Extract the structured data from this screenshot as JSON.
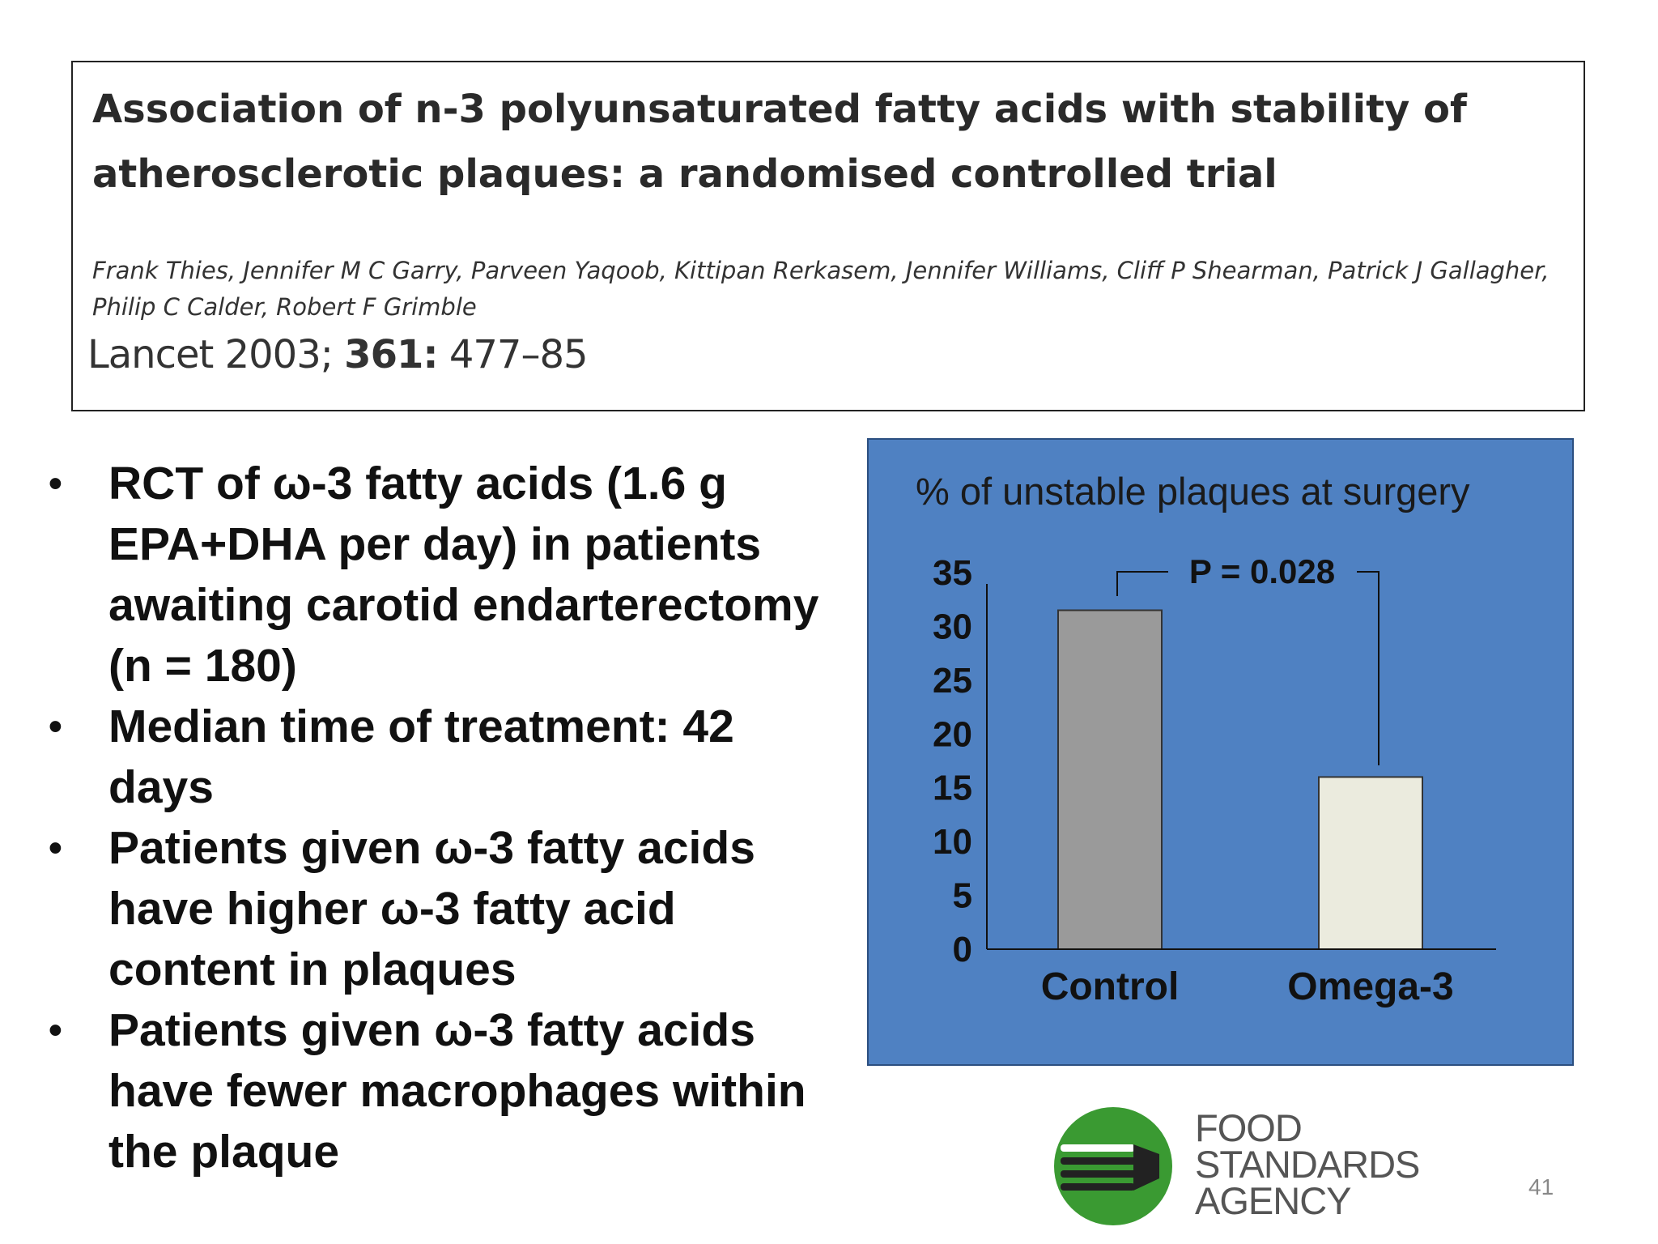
{
  "citation": {
    "title": "Association of n-3 polyunsaturated fatty acids with stability of atherosclerotic plaques: a randomised controlled trial",
    "authors": "Frank Thies, Jennifer M C Garry, Parveen Yaqoob, Kittipan Rerkasem, Jennifer Williams, Cliff P Shearman, Patrick J Gallagher, Philip C Calder, Robert F Grimble",
    "journal": "Lancet 2003;",
    "volume": "361:",
    "pages": "477–85"
  },
  "bullets": [
    {
      "symbol": "•",
      "text": "RCT of ω-3 fatty acids (1.6 g EPA+DHA per day) in patients awaiting carotid endarterectomy (n = 180)"
    },
    {
      "symbol": "•",
      "text": "Median time of treatment: 42 days"
    },
    {
      "symbol": "•",
      "text": "Patients given ω-3 fatty acids have higher ω-3 fatty acid content in plaques"
    },
    {
      "symbol": "•",
      "text": "Patients given  ω-3 fatty acids have fewer macrophages within the plaque"
    }
  ],
  "chart_data": {
    "type": "bar",
    "title": "% of unstable plaques at surgery",
    "categories": [
      "Control",
      "Omega-3"
    ],
    "values": [
      31.5,
      16
    ],
    "ylim": [
      0,
      35
    ],
    "yticks": [
      0,
      5,
      10,
      15,
      20,
      25,
      30,
      35
    ],
    "xlabel": "",
    "ylabel": "",
    "grid": false,
    "annotation": "P = 0.028",
    "bar_colors": [
      "#9a9a9a",
      "#ebebde"
    ],
    "background": "#4f81c2"
  },
  "logo": {
    "line1": "FOOD",
    "line2": "STANDARDS",
    "line3": "AGENCY",
    "green": "#3a9a32"
  },
  "slide_number": "41"
}
